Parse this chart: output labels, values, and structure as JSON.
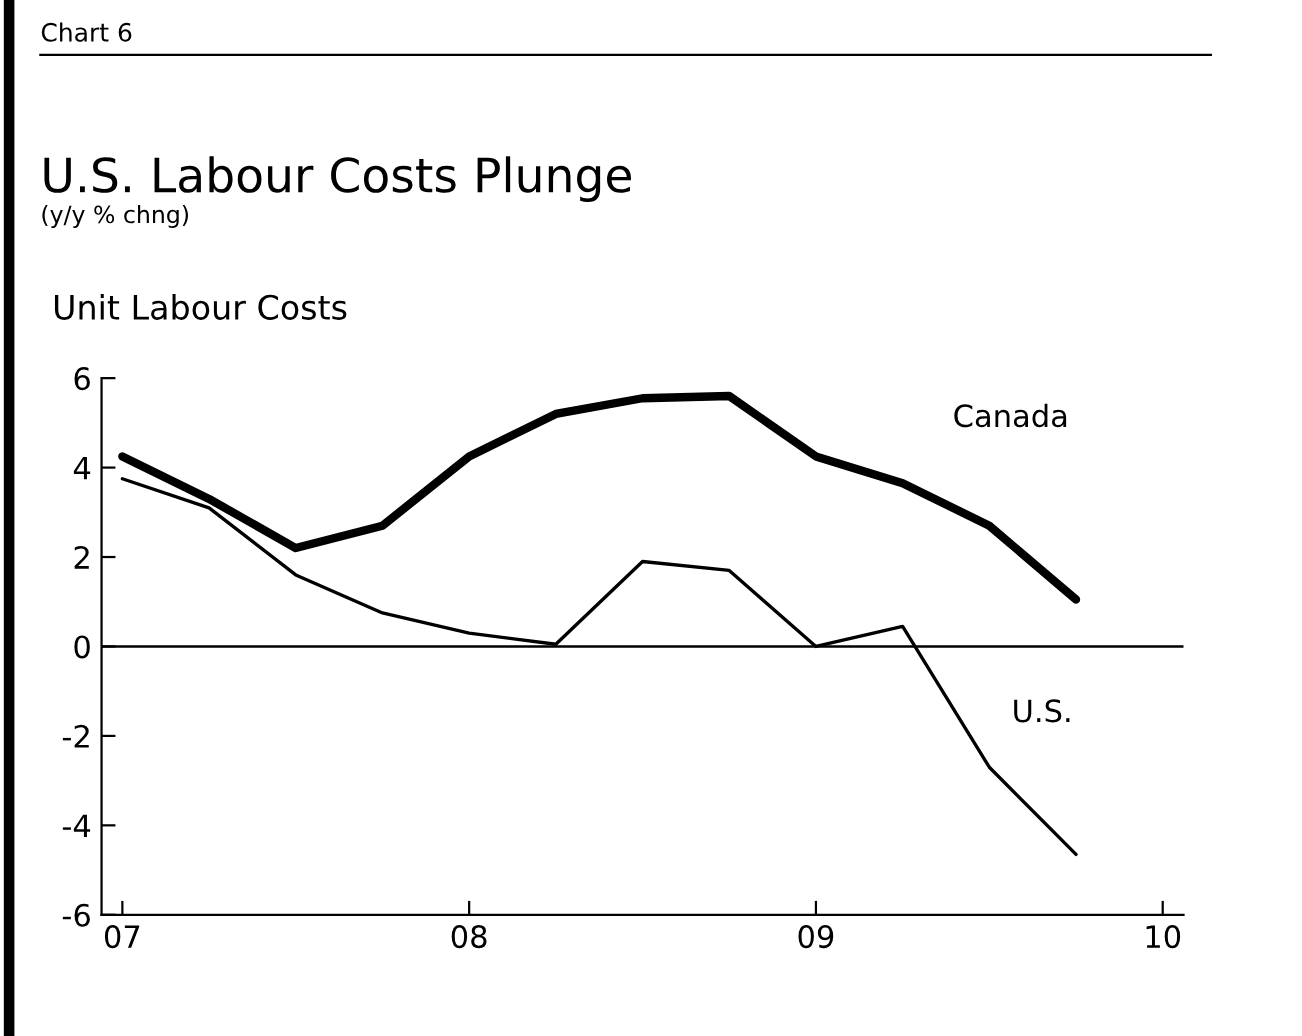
{
  "chart_data": {
    "type": "line",
    "title": "U.S. Labour Costs Plunge",
    "subtitle": "(y/y % chng)",
    "annotations": [
      "Chart 6",
      "Unit Labour Costs"
    ],
    "x": [
      2007.0,
      2007.25,
      2007.5,
      2007.75,
      2008.0,
      2008.25,
      2008.5,
      2008.75,
      2009.0,
      2009.25,
      2009.5,
      2009.75
    ],
    "series": [
      {
        "name": "Canada",
        "color": "#000000",
        "values": [
          4.25,
          3.3,
          2.2,
          2.7,
          4.25,
          5.2,
          5.55,
          5.6,
          4.25,
          3.65,
          2.7,
          1.05
        ]
      },
      {
        "name": "U.S.",
        "color": "#000000",
        "values": [
          3.75,
          3.1,
          1.6,
          0.75,
          0.3,
          0.05,
          1.9,
          1.7,
          0.0,
          0.45,
          -2.7,
          -4.65
        ]
      }
    ],
    "xlim": [
      2006.94,
      2010.06
    ],
    "xticks": [
      {
        "value": 2007,
        "label": "07"
      },
      {
        "value": 2008,
        "label": "08"
      },
      {
        "value": 2009,
        "label": "09"
      },
      {
        "value": 2010,
        "label": "10"
      }
    ],
    "ylim": [
      -6,
      6
    ],
    "yticks": [
      -6,
      -4,
      -2,
      0,
      2,
      4,
      6
    ],
    "ref_lines": [
      {
        "axis": "y",
        "value": 0,
        "color": "#000000"
      }
    ],
    "grid": false,
    "legend": false,
    "marker": "none",
    "line_style": "solid"
  }
}
